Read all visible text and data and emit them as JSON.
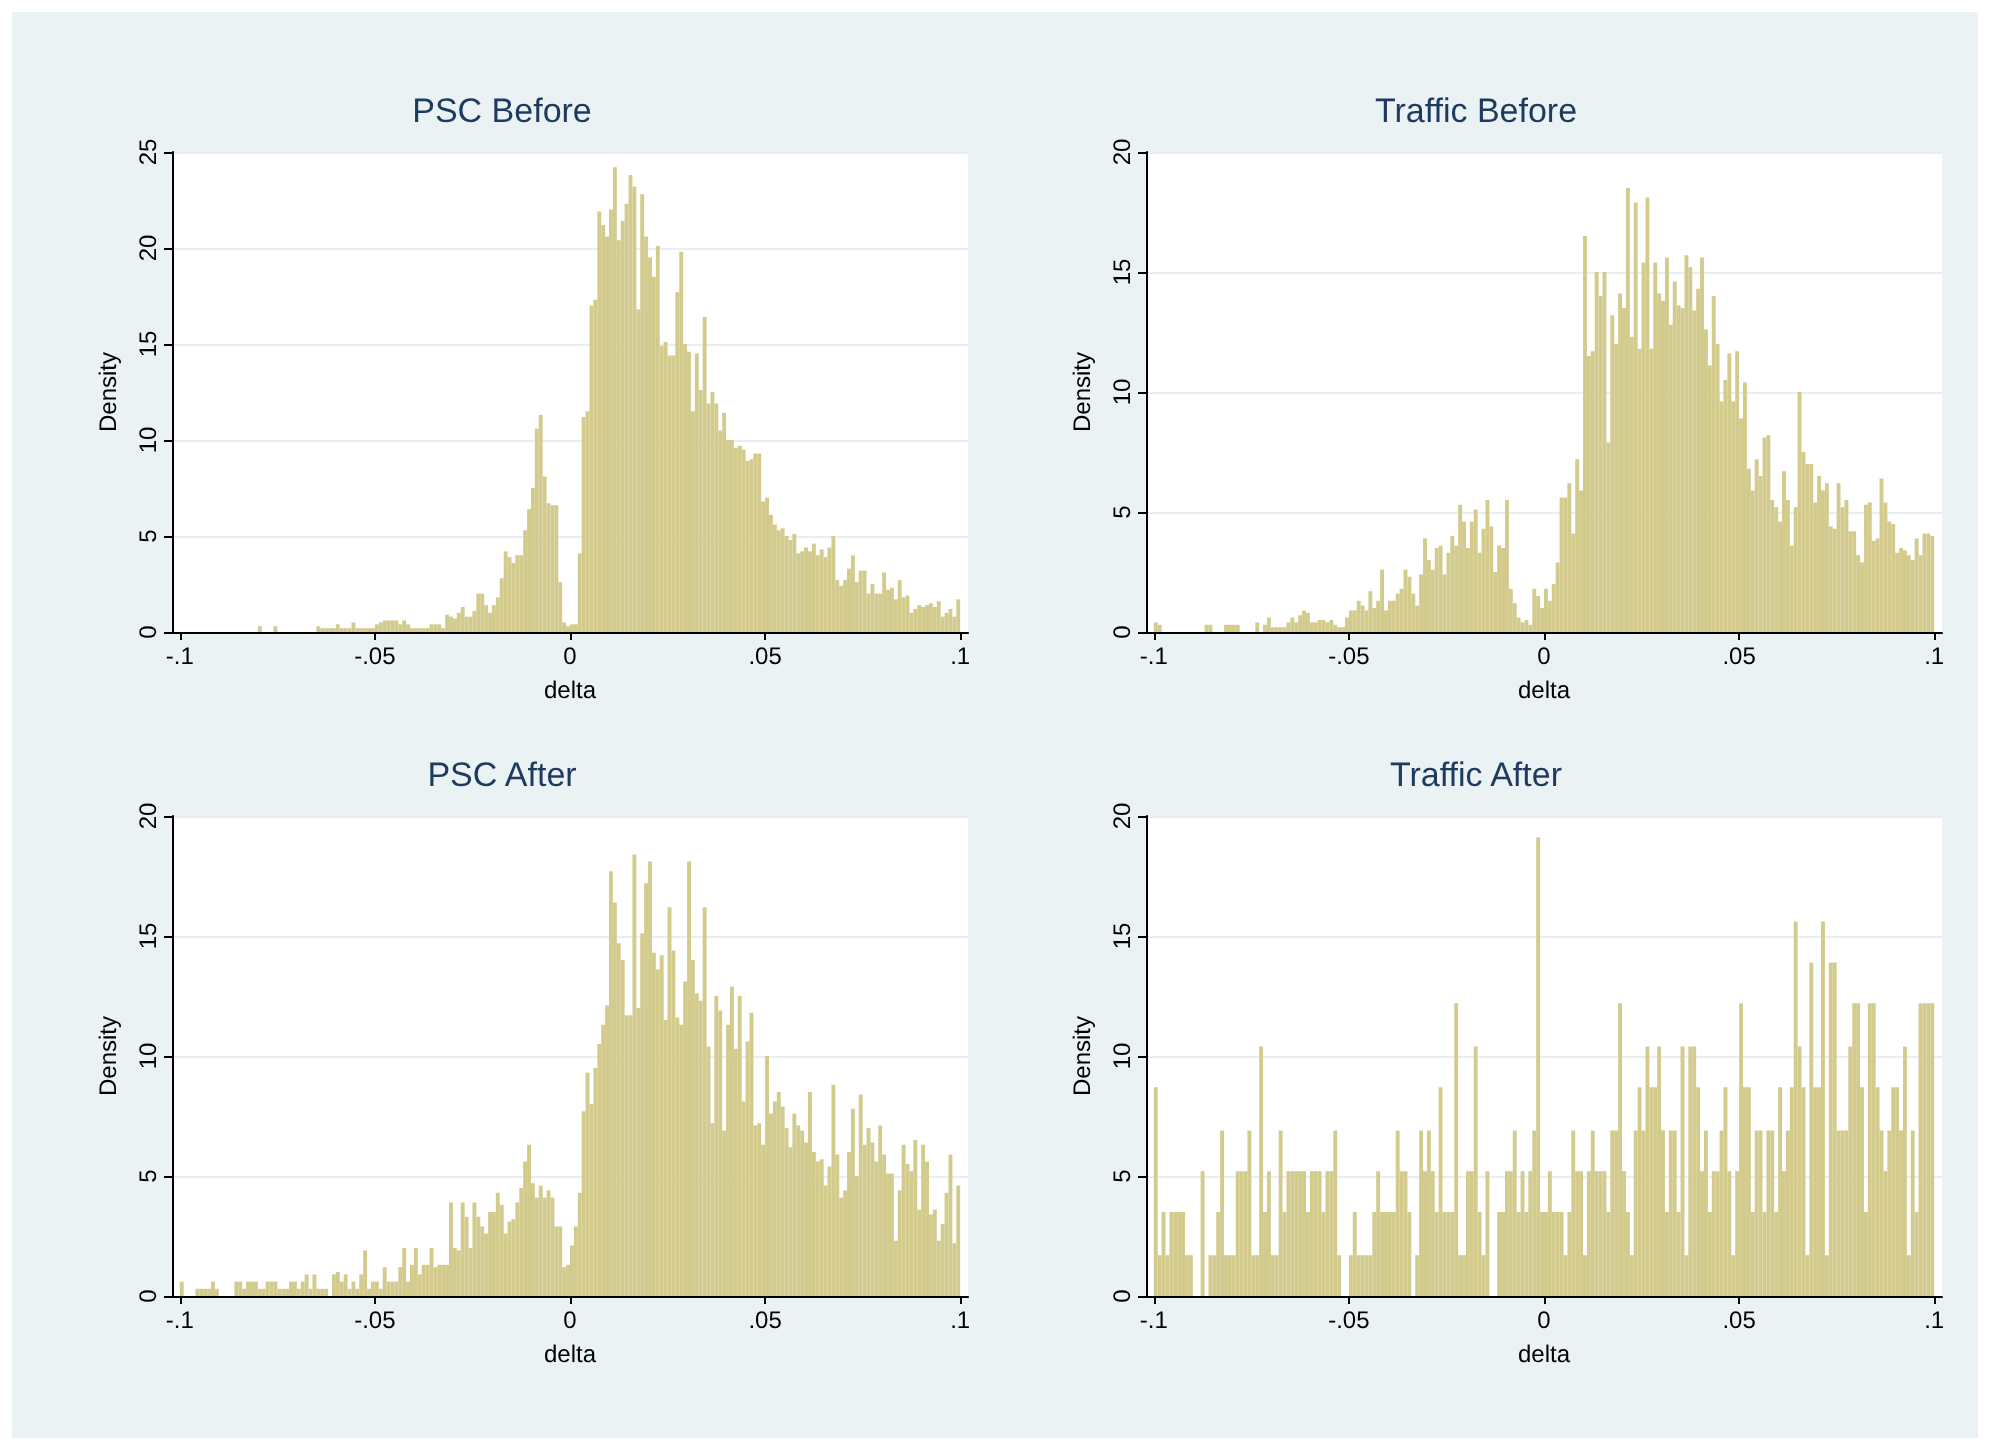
{
  "chart_data": [
    {
      "type": "histogram",
      "title": "PSC Before",
      "xlabel": "delta",
      "ylabel": "Density",
      "color": "#d3cb8e",
      "grid": "y",
      "xlim": [
        -0.102,
        0.102
      ],
      "ylim": [
        0,
        25
      ],
      "xticks": [
        {
          "value": -0.1,
          "label": "-.1"
        },
        {
          "value": -0.05,
          "label": "-.05"
        },
        {
          "value": 0,
          "label": "0"
        },
        {
          "value": 0.05,
          "label": ".05"
        },
        {
          "value": 0.1,
          "label": ".1"
        }
      ],
      "yticks": [
        0,
        5,
        10,
        15,
        20,
        25
      ],
      "bins": [
        -0.08,
        -0.079,
        -0.076,
        -0.075,
        -0.065,
        -0.064,
        -0.063,
        -0.062,
        -0.061,
        -0.06,
        -0.059,
        -0.058,
        -0.057,
        -0.056,
        -0.055,
        -0.054,
        -0.053,
        -0.052,
        -0.051,
        -0.05,
        -0.049,
        -0.048,
        -0.047,
        -0.046,
        -0.045,
        -0.044,
        -0.043,
        -0.042,
        -0.041,
        -0.04,
        -0.039,
        -0.038,
        -0.037,
        -0.036,
        -0.035,
        -0.034,
        -0.033,
        -0.032,
        -0.031,
        -0.03,
        -0.029,
        -0.028,
        -0.027,
        -0.026,
        -0.025,
        -0.024,
        -0.023,
        -0.022,
        -0.021,
        -0.02,
        -0.019,
        -0.018,
        -0.017,
        -0.016,
        -0.015,
        -0.014,
        -0.013,
        -0.012,
        -0.011,
        -0.01,
        -0.009,
        -0.008,
        -0.007,
        -0.006,
        -0.005,
        -0.004,
        -0.003,
        -0.002,
        -0.001,
        0,
        0.001,
        0.002,
        0.003,
        0.004,
        0.005,
        0.006,
        0.007,
        0.008,
        0.009,
        0.01,
        0.011,
        0.012,
        0.013,
        0.014,
        0.015,
        0.016,
        0.017,
        0.018,
        0.019,
        0.02,
        0.021,
        0.022,
        0.023,
        0.024,
        0.025,
        0.026,
        0.027,
        0.028,
        0.029,
        0.03,
        0.031,
        0.032,
        0.033,
        0.034,
        0.035,
        0.036,
        0.037,
        0.038,
        0.039,
        0.04,
        0.041,
        0.042,
        0.043,
        0.044,
        0.045,
        0.046,
        0.047,
        0.048,
        0.049,
        0.05,
        0.051,
        0.052,
        0.053,
        0.054,
        0.055,
        0.056,
        0.057,
        0.058,
        0.059,
        0.06,
        0.061,
        0.062,
        0.063,
        0.064,
        0.065,
        0.066,
        0.067,
        0.068,
        0.069,
        0.07,
        0.071,
        0.072,
        0.073,
        0.074,
        0.075,
        0.076,
        0.077,
        0.078,
        0.079,
        0.08,
        0.081,
        0.082,
        0.083,
        0.084,
        0.085,
        0.086,
        0.087,
        0.088,
        0.089,
        0.09,
        0.091,
        0.092,
        0.093,
        0.094,
        0.095,
        0.096,
        0.097,
        0.098,
        0.099,
        0.1
      ],
      "values": [
        0.3,
        0,
        0.3,
        0,
        0.3,
        0.2,
        0.2,
        0.2,
        0.2,
        0.4,
        0.2,
        0.2,
        0.2,
        0.5,
        0.2,
        0.2,
        0.2,
        0.2,
        0.2,
        0.4,
        0.5,
        0.6,
        0.6,
        0.6,
        0.6,
        0.4,
        0.6,
        0.4,
        0.2,
        0.2,
        0.2,
        0.2,
        0.2,
        0.4,
        0.4,
        0.4,
        0.2,
        0.9,
        0.8,
        0.7,
        1.0,
        1.3,
        0.8,
        0.8,
        1.1,
        2.0,
        2.0,
        1.4,
        1.0,
        1.4,
        1.8,
        2.8,
        4.2,
        3.9,
        3.6,
        4.0,
        4.0,
        5.3,
        6.4,
        7.5,
        10.6,
        11.3,
        8.1,
        6.7,
        6.6,
        6.6,
        2.6,
        0.5,
        0.3,
        0.4,
        0.4,
        4.1,
        11.2,
        11.5,
        17.0,
        17.3,
        21.9,
        21.2,
        20.6,
        22.0,
        24.2,
        20.4,
        21.4,
        22.3,
        23.8,
        23.2,
        16.8,
        22.8,
        20.6,
        19.5,
        18.5,
        20.1,
        14.9,
        15.1,
        14.4,
        14.4,
        17.7,
        19.8,
        15.0,
        14.6,
        11.5,
        14.5,
        12.6,
        16.4,
        11.9,
        12.5,
        11.9,
        10.5,
        11.4,
        10.0,
        10.0,
        9.6,
        9.7,
        9.5,
        8.9,
        9.0,
        9.3,
        9.3,
        6.8,
        7.0,
        6.1,
        5.6,
        5.3,
        5.4,
        5.0,
        4.8,
        5.1,
        4.1,
        4.2,
        4.4,
        4.2,
        4.6,
        4.0,
        4.3,
        3.9,
        4.4,
        5.0,
        2.7,
        2.4,
        2.7,
        3.3,
        4.0,
        2.6,
        3.2,
        3.2,
        2.0,
        2.5,
        2.0,
        2.0,
        3.1,
        2.2,
        2.3,
        1.7,
        2.7,
        1.8,
        1.9,
        1.0,
        1.2,
        1.4,
        1.3,
        1.4,
        1.5,
        1.3,
        1.6,
        0.8,
        1.0,
        1.2,
        0.8,
        1.7
      ]
    },
    {
      "type": "histogram",
      "title": "Traffic Before",
      "xlabel": "delta",
      "ylabel": "Density",
      "color": "#d3cb8e",
      "grid": "y",
      "xlim": [
        -0.102,
        0.102
      ],
      "ylim": [
        0,
        20
      ],
      "xticks": [
        {
          "value": -0.1,
          "label": "-.1"
        },
        {
          "value": -0.05,
          "label": "-.05"
        },
        {
          "value": 0,
          "label": "0"
        },
        {
          "value": 0.05,
          "label": ".05"
        },
        {
          "value": 0.1,
          "label": ".1"
        }
      ],
      "yticks": [
        0,
        5,
        10,
        15,
        20
      ],
      "bins": [
        -0.1,
        -0.099,
        -0.098,
        -0.087,
        -0.086,
        -0.085,
        -0.082,
        -0.081,
        -0.08,
        -0.079,
        -0.078,
        -0.074,
        -0.073,
        -0.072,
        -0.071,
        -0.07,
        -0.069,
        -0.068,
        -0.067,
        -0.066,
        -0.065,
        -0.064,
        -0.063,
        -0.062,
        -0.061,
        -0.06,
        -0.059,
        -0.058,
        -0.057,
        -0.056,
        -0.055,
        -0.054,
        -0.053,
        -0.052,
        -0.051,
        -0.05,
        -0.049,
        -0.048,
        -0.047,
        -0.046,
        -0.045,
        -0.044,
        -0.043,
        -0.042,
        -0.041,
        -0.04,
        -0.039,
        -0.038,
        -0.037,
        -0.036,
        -0.035,
        -0.034,
        -0.033,
        -0.032,
        -0.031,
        -0.03,
        -0.029,
        -0.028,
        -0.027,
        -0.026,
        -0.025,
        -0.024,
        -0.023,
        -0.022,
        -0.021,
        -0.02,
        -0.019,
        -0.018,
        -0.017,
        -0.016,
        -0.015,
        -0.014,
        -0.013,
        -0.012,
        -0.011,
        -0.01,
        -0.009,
        -0.008,
        -0.007,
        -0.006,
        -0.005,
        -0.004,
        -0.003,
        -0.002,
        -0.001,
        0,
        0.001,
        0.002,
        0.003,
        0.004,
        0.005,
        0.006,
        0.007,
        0.008,
        0.009,
        0.01,
        0.011,
        0.012,
        0.013,
        0.014,
        0.015,
        0.016,
        0.017,
        0.018,
        0.019,
        0.02,
        0.021,
        0.022,
        0.023,
        0.024,
        0.025,
        0.026,
        0.027,
        0.028,
        0.029,
        0.03,
        0.031,
        0.032,
        0.033,
        0.034,
        0.035,
        0.036,
        0.037,
        0.038,
        0.039,
        0.04,
        0.041,
        0.042,
        0.043,
        0.044,
        0.045,
        0.046,
        0.047,
        0.048,
        0.049,
        0.05,
        0.051,
        0.052,
        0.053,
        0.054,
        0.055,
        0.056,
        0.057,
        0.058,
        0.059,
        0.06,
        0.061,
        0.062,
        0.063,
        0.064,
        0.065,
        0.066,
        0.067,
        0.068,
        0.069,
        0.07,
        0.071,
        0.072,
        0.073,
        0.074,
        0.075,
        0.076,
        0.077,
        0.078,
        0.079,
        0.08,
        0.081,
        0.082,
        0.083,
        0.084,
        0.085,
        0.086,
        0.087,
        0.088,
        0.089,
        0.09,
        0.091,
        0.092,
        0.093,
        0.094,
        0.095,
        0.096,
        0.097,
        0.098,
        0.099,
        0.1
      ],
      "values": [
        0.4,
        0.3,
        0,
        0.3,
        0.3,
        0,
        0.3,
        0.3,
        0.3,
        0.3,
        0,
        0.4,
        0,
        0.3,
        0.6,
        0.2,
        0.2,
        0.2,
        0.2,
        0.4,
        0.6,
        0.4,
        0.7,
        0.9,
        0.8,
        0.4,
        0.4,
        0.5,
        0.5,
        0.4,
        0.5,
        0.3,
        0.2,
        0.2,
        0.6,
        0.9,
        0.9,
        1.3,
        1.1,
        0.9,
        1.7,
        1.0,
        1.3,
        2.6,
        0.9,
        1.3,
        1.3,
        1.6,
        1.8,
        2.6,
        2.3,
        1.6,
        1.1,
        2.4,
        3.9,
        3.0,
        2.6,
        3.5,
        3.6,
        2.4,
        3.3,
        4.0,
        3.6,
        5.3,
        4.6,
        3.5,
        4.6,
        5.1,
        3.3,
        4.3,
        5.5,
        4.4,
        2.5,
        3.6,
        3.5,
        5.5,
        1.8,
        1.2,
        0.6,
        0.4,
        0.5,
        0.3,
        1.8,
        1.5,
        1.0,
        1.8,
        1.3,
        2.0,
        2.9,
        5.6,
        5.6,
        6.2,
        4.1,
        7.2,
        5.9,
        16.5,
        11.5,
        11.7,
        15.0,
        14.0,
        15.0,
        7.9,
        13.2,
        12.0,
        14.1,
        13.5,
        18.5,
        12.3,
        17.9,
        11.8,
        15.4,
        18.1,
        11.8,
        15.4,
        14.1,
        13.8,
        15.6,
        12.8,
        14.6,
        13.6,
        13.5,
        15.7,
        15.2,
        13.4,
        14.3,
        15.6,
        12.6,
        11.1,
        14.0,
        12.0,
        9.6,
        10.5,
        11.6,
        9.6,
        11.7,
        8.9,
        10.4,
        6.8,
        5.9,
        7.2,
        6.5,
        8.1,
        8.2,
        5.5,
        5.2,
        4.6,
        6.7,
        5.5,
        3.6,
        5.2,
        10.0,
        7.5,
        7.0,
        7.0,
        5.4,
        6.5,
        5.9,
        6.2,
        4.4,
        4.3,
        6.2,
        5.2,
        5.5,
        4.2,
        4.2,
        3.2,
        2.9,
        5.3,
        5.4,
        3.8,
        3.9,
        6.4,
        5.4,
        4.6,
        4.5,
        3.3,
        3.5,
        3.4,
        3.2,
        3.0,
        3.9,
        3.2,
        4.1,
        4.1,
        4.0
      ]
    },
    {
      "type": "histogram",
      "title": "PSC After",
      "xlabel": "delta",
      "ylabel": "Density",
      "color": "#d3cb8e",
      "grid": "y",
      "xlim": [
        -0.102,
        0.102
      ],
      "ylim": [
        0,
        20
      ],
      "xticks": [
        {
          "value": -0.1,
          "label": "-.1"
        },
        {
          "value": -0.05,
          "label": "-.05"
        },
        {
          "value": 0,
          "label": "0"
        },
        {
          "value": 0.05,
          "label": ".05"
        },
        {
          "value": 0.1,
          "label": ".1"
        }
      ],
      "yticks": [
        0,
        5,
        10,
        15,
        20
      ],
      "bins": [
        -0.1,
        -0.099,
        -0.098,
        -0.097,
        -0.096,
        -0.095,
        -0.094,
        -0.093,
        -0.092,
        -0.091,
        -0.09,
        -0.089,
        -0.088,
        -0.087,
        -0.086,
        -0.085,
        -0.084,
        -0.083,
        -0.082,
        -0.081,
        -0.08,
        -0.079,
        -0.078,
        -0.077,
        -0.076,
        -0.075,
        -0.074,
        -0.073,
        -0.072,
        -0.071,
        -0.07,
        -0.069,
        -0.068,
        -0.067,
        -0.066,
        -0.065,
        -0.064,
        -0.063,
        -0.062,
        -0.061,
        -0.06,
        -0.059,
        -0.058,
        -0.057,
        -0.056,
        -0.055,
        -0.054,
        -0.053,
        -0.052,
        -0.051,
        -0.05,
        -0.049,
        -0.048,
        -0.047,
        -0.046,
        -0.045,
        -0.044,
        -0.043,
        -0.042,
        -0.041,
        -0.04,
        -0.039,
        -0.038,
        -0.037,
        -0.036,
        -0.035,
        -0.034,
        -0.033,
        -0.032,
        -0.031,
        -0.03,
        -0.029,
        -0.028,
        -0.027,
        -0.026,
        -0.025,
        -0.024,
        -0.023,
        -0.022,
        -0.021,
        -0.02,
        -0.019,
        -0.018,
        -0.017,
        -0.016,
        -0.015,
        -0.014,
        -0.013,
        -0.012,
        -0.011,
        -0.01,
        -0.009,
        -0.008,
        -0.007,
        -0.006,
        -0.005,
        -0.004,
        -0.003,
        -0.002,
        -0.001,
        0,
        0.001,
        0.002,
        0.003,
        0.004,
        0.005,
        0.006,
        0.007,
        0.008,
        0.009,
        0.01,
        0.011,
        0.012,
        0.013,
        0.014,
        0.015,
        0.016,
        0.017,
        0.018,
        0.019,
        0.02,
        0.021,
        0.022,
        0.023,
        0.024,
        0.025,
        0.026,
        0.027,
        0.028,
        0.029,
        0.03,
        0.031,
        0.032,
        0.033,
        0.034,
        0.035,
        0.036,
        0.037,
        0.038,
        0.039,
        0.04,
        0.041,
        0.042,
        0.043,
        0.044,
        0.045,
        0.046,
        0.047,
        0.048,
        0.049,
        0.05,
        0.051,
        0.052,
        0.053,
        0.054,
        0.055,
        0.056,
        0.057,
        0.058,
        0.059,
        0.06,
        0.061,
        0.062,
        0.063,
        0.064,
        0.065,
        0.066,
        0.067,
        0.068,
        0.069,
        0.07,
        0.071,
        0.072,
        0.073,
        0.074,
        0.075,
        0.076,
        0.077,
        0.078,
        0.079,
        0.08,
        0.081,
        0.082,
        0.083,
        0.084,
        0.085,
        0.086,
        0.087,
        0.088,
        0.089,
        0.09,
        0.091,
        0.092,
        0.093,
        0.094,
        0.095,
        0.096,
        0.097,
        0.098,
        0.099,
        0.1
      ],
      "values": [
        0.6,
        0,
        0,
        0,
        0.3,
        0.3,
        0.3,
        0.3,
        0.6,
        0.3,
        0,
        0,
        0,
        0,
        0.6,
        0.6,
        0.3,
        0.6,
        0.6,
        0.6,
        0.3,
        0.3,
        0.6,
        0.6,
        0.6,
        0.3,
        0.3,
        0.3,
        0.6,
        0.6,
        0.3,
        0.6,
        0.9,
        0.3,
        0.9,
        0.3,
        0.3,
        0.3,
        0,
        0.9,
        1.0,
        0.6,
        0.9,
        0.3,
        0.6,
        0.3,
        0.9,
        1.9,
        0.3,
        0.6,
        0.6,
        0.3,
        1.2,
        0.6,
        0.6,
        0.6,
        1.2,
        2.0,
        0.6,
        1.3,
        2.0,
        0.9,
        1.3,
        1.3,
        2.0,
        1.2,
        1.3,
        1.3,
        1.3,
        3.9,
        2.0,
        1.9,
        3.9,
        3.3,
        2.0,
        3.9,
        3.3,
        2.9,
        2.6,
        3.5,
        3.5,
        4.3,
        3.8,
        2.6,
        3.1,
        3.2,
        3.9,
        4.5,
        5.6,
        6.3,
        4.7,
        4.1,
        4.6,
        4.1,
        4.4,
        4.1,
        2.9,
        2.9,
        1.2,
        1.3,
        2.1,
        2.9,
        4.3,
        7.7,
        9.3,
        8.0,
        9.5,
        10.5,
        11.3,
        12.1,
        17.7,
        16.4,
        14.7,
        14.0,
        11.7,
        11.7,
        18.4,
        12.0,
        15.1,
        17.2,
        18.1,
        14.3,
        13.6,
        14.2,
        11.5,
        16.2,
        14.4,
        11.6,
        11.3,
        13.1,
        18.1,
        14.0,
        12.6,
        12.3,
        16.2,
        10.4,
        7.2,
        12.5,
        11.9,
        6.9,
        11.3,
        12.9,
        10.3,
        12.5,
        8.1,
        10.6,
        11.8,
        7.1,
        7.2,
        6.3,
        10.0,
        7.6,
        8.1,
        8.5,
        7.9,
        7.0,
        6.2,
        7.6,
        7.1,
        6.9,
        6.4,
        8.5,
        6.0,
        5.6,
        5.7,
        4.6,
        5.4,
        8.8,
        5.9,
        4.1,
        4.4,
        6.0,
        7.8,
        5.0,
        8.4,
        6.3,
        7.0,
        6.4,
        5.6,
        7.1,
        5.9,
        5.1,
        5.1,
        2.3,
        4.4,
        6.3,
        5.5,
        5.2,
        6.5,
        3.6,
        6.3,
        5.6,
        3.4,
        3.6,
        2.3,
        3.0,
        4.3,
        5.9,
        2.2,
        4.6
      ]
    },
    {
      "type": "histogram",
      "title": "Traffic After",
      "xlabel": "delta",
      "ylabel": "Density",
      "color": "#d3cb8e",
      "grid": "y",
      "xlim": [
        -0.102,
        0.102
      ],
      "ylim": [
        0,
        20
      ],
      "xticks": [
        {
          "value": -0.1,
          "label": "-.1"
        },
        {
          "value": -0.05,
          "label": "-.05"
        },
        {
          "value": 0,
          "label": "0"
        },
        {
          "value": 0.05,
          "label": ".05"
        },
        {
          "value": 0.1,
          "label": ".1"
        }
      ],
      "yticks": [
        0,
        5,
        10,
        15,
        20
      ],
      "bins": [
        -0.1,
        -0.099,
        -0.098,
        -0.097,
        -0.096,
        -0.095,
        -0.094,
        -0.093,
        -0.092,
        -0.091,
        -0.09,
        -0.089,
        -0.088,
        -0.087,
        -0.086,
        -0.085,
        -0.084,
        -0.083,
        -0.082,
        -0.081,
        -0.08,
        -0.079,
        -0.078,
        -0.077,
        -0.076,
        -0.075,
        -0.074,
        -0.073,
        -0.072,
        -0.071,
        -0.07,
        -0.069,
        -0.068,
        -0.067,
        -0.066,
        -0.065,
        -0.064,
        -0.063,
        -0.062,
        -0.061,
        -0.06,
        -0.059,
        -0.058,
        -0.057,
        -0.056,
        -0.055,
        -0.054,
        -0.053,
        -0.052,
        -0.051,
        -0.05,
        -0.049,
        -0.048,
        -0.047,
        -0.046,
        -0.045,
        -0.044,
        -0.043,
        -0.042,
        -0.041,
        -0.04,
        -0.039,
        -0.038,
        -0.037,
        -0.036,
        -0.035,
        -0.034,
        -0.033,
        -0.032,
        -0.031,
        -0.03,
        -0.029,
        -0.028,
        -0.027,
        -0.026,
        -0.025,
        -0.024,
        -0.023,
        -0.022,
        -0.021,
        -0.02,
        -0.019,
        -0.018,
        -0.017,
        -0.016,
        -0.015,
        -0.014,
        -0.013,
        -0.012,
        -0.011,
        -0.01,
        -0.009,
        -0.008,
        -0.007,
        -0.006,
        -0.005,
        -0.004,
        -0.003,
        -0.002,
        -0.001,
        0,
        0.001,
        0.002,
        0.003,
        0.004,
        0.005,
        0.006,
        0.007,
        0.008,
        0.009,
        0.01,
        0.011,
        0.012,
        0.013,
        0.014,
        0.015,
        0.016,
        0.017,
        0.018,
        0.019,
        0.02,
        0.021,
        0.022,
        0.023,
        0.024,
        0.025,
        0.026,
        0.027,
        0.028,
        0.029,
        0.03,
        0.031,
        0.032,
        0.033,
        0.034,
        0.035,
        0.036,
        0.037,
        0.038,
        0.039,
        0.04,
        0.041,
        0.042,
        0.043,
        0.044,
        0.045,
        0.046,
        0.047,
        0.048,
        0.049,
        0.05,
        0.051,
        0.052,
        0.053,
        0.054,
        0.055,
        0.056,
        0.057,
        0.058,
        0.059,
        0.06,
        0.061,
        0.062,
        0.063,
        0.064,
        0.065,
        0.066,
        0.067,
        0.068,
        0.069,
        0.07,
        0.071,
        0.072,
        0.073,
        0.074,
        0.075,
        0.076,
        0.077,
        0.078,
        0.079,
        0.08,
        0.081,
        0.082,
        0.083,
        0.084,
        0.085,
        0.086,
        0.087,
        0.088,
        0.089,
        0.09,
        0.091,
        0.092,
        0.093,
        0.094,
        0.095,
        0.096,
        0.097,
        0.098,
        0.099,
        0.1
      ],
      "values": [
        8.7,
        1.7,
        3.5,
        1.7,
        3.5,
        3.5,
        3.5,
        3.5,
        1.7,
        1.7,
        0,
        0,
        5.2,
        0,
        1.7,
        1.7,
        3.5,
        6.9,
        1.7,
        1.7,
        1.7,
        5.2,
        5.2,
        5.2,
        6.9,
        1.7,
        1.7,
        10.4,
        3.5,
        5.2,
        1.7,
        1.7,
        6.9,
        3.5,
        5.2,
        5.2,
        5.2,
        5.2,
        5.2,
        3.5,
        5.2,
        5.2,
        5.2,
        3.5,
        5.2,
        5.2,
        6.9,
        1.7,
        0,
        0,
        1.7,
        3.5,
        1.7,
        1.7,
        1.7,
        1.7,
        3.5,
        5.2,
        3.5,
        3.5,
        3.5,
        3.5,
        6.9,
        5.2,
        5.2,
        3.5,
        0,
        1.7,
        6.9,
        5.2,
        6.9,
        5.2,
        3.5,
        8.7,
        3.5,
        3.5,
        3.5,
        12.2,
        1.7,
        1.7,
        5.2,
        5.2,
        10.4,
        3.5,
        1.7,
        5.2,
        0,
        0,
        3.5,
        3.5,
        5.2,
        5.2,
        6.9,
        3.5,
        5.2,
        3.5,
        5.2,
        6.9,
        19.1,
        3.5,
        3.5,
        5.2,
        3.5,
        3.5,
        3.5,
        1.7,
        3.5,
        6.9,
        5.2,
        5.2,
        1.7,
        5.2,
        6.9,
        5.2,
        5.2,
        5.2,
        3.5,
        6.9,
        6.9,
        12.2,
        5.2,
        3.5,
        1.7,
        6.9,
        8.7,
        6.9,
        10.4,
        8.7,
        8.7,
        10.4,
        6.9,
        3.5,
        6.9,
        6.9,
        3.5,
        10.4,
        1.7,
        10.4,
        10.4,
        8.7,
        5.2,
        6.9,
        3.5,
        5.2,
        5.2,
        6.9,
        8.7,
        5.2,
        1.7,
        5.2,
        12.2,
        8.7,
        8.7,
        3.5,
        6.9,
        6.9,
        3.5,
        6.9,
        6.9,
        3.5,
        8.7,
        5.2,
        6.9,
        8.7,
        15.6,
        10.4,
        8.7,
        1.7,
        13.9,
        8.7,
        8.7,
        15.6,
        1.7,
        13.9,
        13.9,
        6.9,
        6.9,
        6.9,
        10.4,
        12.2,
        12.2,
        8.7,
        3.5,
        12.2,
        12.2,
        8.7,
        6.9,
        5.2,
        6.9,
        8.7,
        8.7,
        6.9,
        10.4,
        1.7,
        6.9,
        3.5,
        12.2,
        12.2,
        12.2,
        12.2
      ]
    }
  ]
}
